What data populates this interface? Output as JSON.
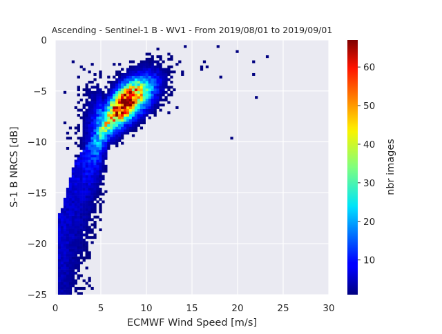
{
  "chart_data": {
    "type": "heatmap",
    "title": "Ascending - Sentinel-1 B - WV1 - From 2019/08/01 to 2019/09/01",
    "xlabel": "ECMWF Wind Speed [m/s]",
    "ylabel": "S-1 B NRCS [dB]",
    "colorbar_label": "nbr images",
    "xlim": [
      0,
      30
    ],
    "ylim": [
      -25,
      0
    ],
    "x_ticks": [
      0,
      5,
      10,
      15,
      20,
      25,
      30
    ],
    "x_tick_labels": [
      "0",
      "5",
      "10",
      "15",
      "20",
      "25",
      "30"
    ],
    "y_ticks": [
      0,
      -5,
      -10,
      -15,
      -20,
      -25
    ],
    "y_tick_labels": [
      "0",
      "−5",
      "−10",
      "−15",
      "−20",
      "−25"
    ],
    "colorbar_range": [
      1,
      67
    ],
    "colorbar_ticks": [
      10,
      20,
      30,
      40,
      50,
      60
    ],
    "colorbar_tick_labels": [
      "10",
      "20",
      "30",
      "40",
      "50",
      "60"
    ],
    "colormap": "jet",
    "grid": true,
    "background_color": "#eaeaf2",
    "grid_color": "#ffffff",
    "density_model": {
      "ridge": [
        [
          0.5,
          -17.0
        ],
        [
          2.0,
          -12.0
        ],
        [
          4.0,
          -9.5
        ],
        [
          6.0,
          -7.5
        ],
        [
          7.5,
          -6.3
        ],
        [
          9.0,
          -5.5
        ],
        [
          11.0,
          -4.6
        ],
        [
          13.0,
          -3.6
        ],
        [
          15.0,
          -2.8
        ],
        [
          17.0,
          -2.0
        ],
        [
          19.0,
          -1.2
        ],
        [
          21.0,
          -0.5
        ]
      ],
      "peak_speed": 7.5,
      "peak_nrcs": -6.3,
      "peak_count": 67
    }
  }
}
